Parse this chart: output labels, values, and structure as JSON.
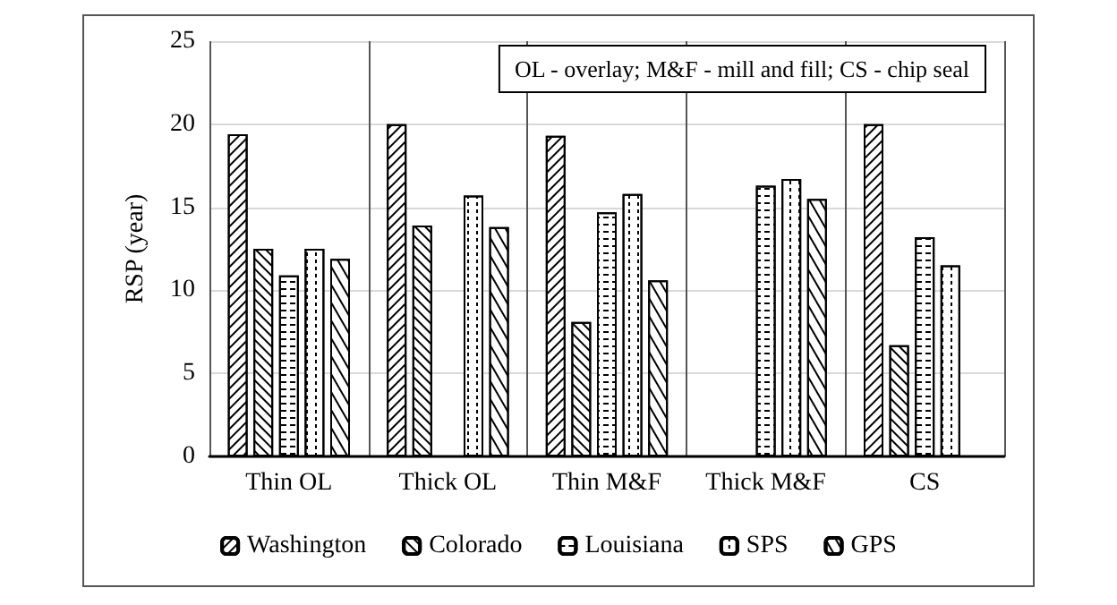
{
  "chart_data": {
    "type": "bar",
    "ylabel": "RSP (year)",
    "categories": [
      "Thin OL",
      "Thick OL",
      "Thin M&F",
      "Thick M&F",
      "CS"
    ],
    "series": [
      {
        "name": "Washington",
        "color": "#ffffff",
        "values": [
          19.4,
          20.0,
          19.3,
          null,
          20.0
        ]
      },
      {
        "name": "Colorado",
        "color": "#ffffff",
        "values": [
          12.5,
          13.9,
          8.1,
          null,
          6.7
        ]
      },
      {
        "name": "Louisiana",
        "color": "#ffffff",
        "values": [
          10.9,
          null,
          14.7,
          16.3,
          13.2
        ]
      },
      {
        "name": "SPS",
        "color": "#ffffff",
        "values": [
          12.5,
          15.7,
          15.8,
          16.7,
          11.5
        ]
      },
      {
        "name": "GPS",
        "color": "#ffffff",
        "values": [
          11.9,
          13.8,
          10.6,
          15.5,
          null
        ]
      }
    ],
    "ylim": [
      0,
      25
    ],
    "yticks": [
      0,
      5,
      10,
      15,
      20,
      25
    ],
    "grid": true,
    "legend": "bottom",
    "annotations": [
      "OL - overlay; M&F - mill and fill; CS - chip seal"
    ]
  }
}
